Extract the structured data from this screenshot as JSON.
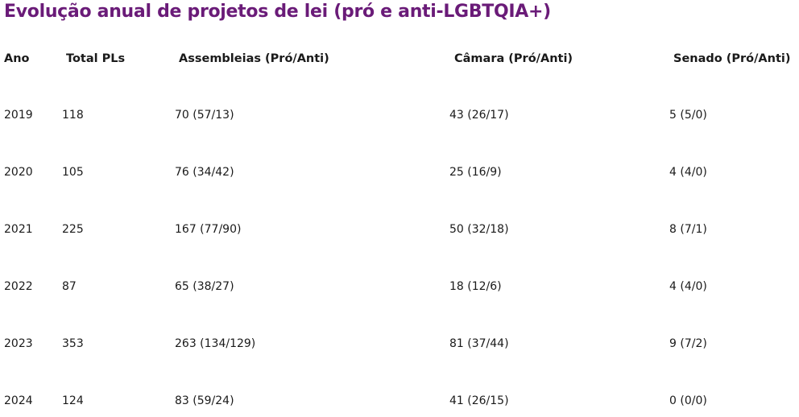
{
  "header": {
    "title": "Evolução anual de projetos de lei (pró e anti-LGBTQIA+)"
  },
  "table": {
    "columns": [
      "Ano",
      "Total PLs",
      "Assembleias (Pró/Anti)",
      "Câmara (Pró/Anti)",
      "Senado (Pró/Anti)"
    ],
    "rows": [
      [
        "2019",
        "118",
        "70 (57/13)",
        "43 (26/17)",
        "5 (5/0)"
      ],
      [
        "2020",
        "105",
        "76 (34/42)",
        "25 (16/9)",
        "4 (4/0)"
      ],
      [
        "2021",
        "225",
        "167 (77/90)",
        "50 (32/18)",
        "8 (7/1)"
      ],
      [
        "2022",
        "87",
        "65 (38/27)",
        "18 (12/6)",
        "4 (4/0)"
      ],
      [
        "2023",
        "353",
        "263 (134/129)",
        "81 (37/44)",
        "9 (7/2)"
      ],
      [
        "2024",
        "124",
        "83 (59/24)",
        "41 (26/15)",
        "0 (0/0)"
      ]
    ]
  }
}
